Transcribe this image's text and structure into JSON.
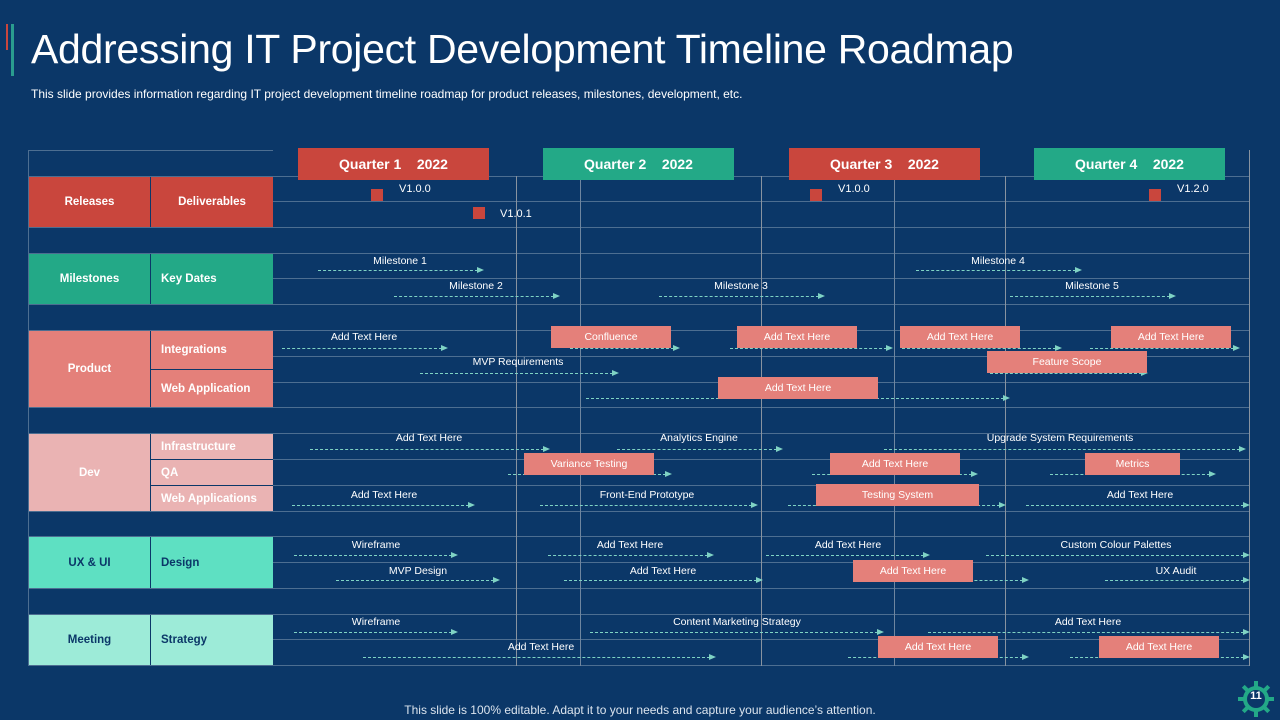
{
  "slide": {
    "title": "Addressing IT Project Development Timeline Roadmap",
    "subtitle": "This slide provides information regarding IT project development timeline roadmap for product releases, milestones, development, etc.",
    "footer": "This slide is 100% editable. Adapt it to your needs and capture your audience’s attention.",
    "page_number": "11"
  },
  "quarters": [
    "Quarter 1    2022",
    "Quarter 2    2022",
    "Quarter 3    2022",
    "Quarter 4    2022"
  ],
  "categories": {
    "releases": "Releases",
    "deliverables": "Deliverables",
    "milestones": "Milestones",
    "key_dates": "Key Dates",
    "product": "Product",
    "integrations": "Integrations",
    "web_application": "Web Application",
    "dev": "Dev",
    "infrastructure": "Infrastructure",
    "qa": "QA",
    "web_applications": "Web Applications",
    "ux_ui": "UX & UI",
    "design": "Design",
    "meeting": "Meeting",
    "strategy": "Strategy"
  },
  "releases": [
    "V1.0.0",
    "V1.0.1",
    "V1.0.0",
    "V1.2.0"
  ],
  "items": [
    "Milestone 1",
    "Milestone 4",
    "Milestone 2",
    "Milestone 3",
    "Milestone 5",
    "Add Text Here",
    "Confluence",
    "Add Text Here",
    "Add Text Here",
    "Add Text Here",
    "MVP Requirements",
    "Feature Scope",
    "Add Text Here",
    "Add Text Here",
    "Analytics Engine",
    "Upgrade System Requirements",
    "Variance Testing",
    "Add Text Here",
    "Metrics",
    "Add Text Here",
    "Front-End Prototype",
    "Testing System",
    "Add Text Here",
    "Wireframe",
    "Add Text Here",
    "Add Text Here",
    "Custom Colour Palettes",
    "MVP Design",
    "Add Text Here",
    "Add Text Here",
    "UX Audit",
    "Wireframe",
    "Content Marketing Strategy",
    "Add Text Here",
    "Add Text Here",
    "Add Text Here",
    "Add Text Here"
  ],
  "colors": {
    "background": "#0b3768",
    "red": "#c9463d",
    "teal_dark": "#23a987",
    "salmon": "#e4807a",
    "pink": "#eab3b3",
    "mint": "#5ee0c2",
    "mint_light": "#9debd8"
  }
}
